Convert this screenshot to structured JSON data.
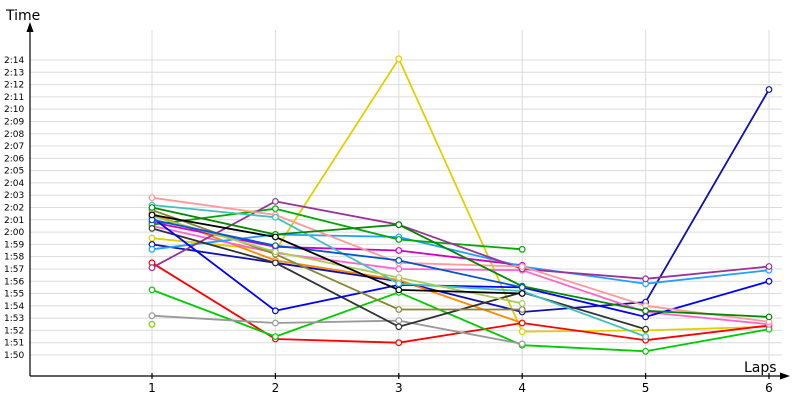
{
  "chart_data": {
    "type": "line",
    "xlabel": "Laps",
    "ylabel": "Time",
    "x": [
      1,
      2,
      3,
      4,
      5,
      6
    ],
    "xlim": [
      0,
      6.05
    ],
    "ylim_seconds": [
      109,
      136
    ],
    "y_ticks": [
      "1:50",
      "1:51",
      "1:52",
      "1:53",
      "1:54",
      "1:55",
      "1:56",
      "1:57",
      "1:58",
      "1:59",
      "2:00",
      "2:01",
      "2:02",
      "2:03",
      "2:04",
      "2:05",
      "2:06",
      "2:07",
      "2:08",
      "2:09",
      "2:10",
      "2:11",
      "2:12",
      "2:13",
      "2:14"
    ],
    "y_ticks_seconds": [
      110,
      111,
      112,
      113,
      114,
      115,
      116,
      117,
      118,
      119,
      120,
      121,
      122,
      123,
      124,
      125,
      126,
      127,
      128,
      129,
      130,
      131,
      132,
      133,
      134
    ],
    "grid": true,
    "series": [
      {
        "color": "#e0d000",
        "values": [
          119.5,
          118.5,
          134.1,
          111.9,
          112.0,
          112.3
        ]
      },
      {
        "color": "#1010b0",
        "values": [
          119.0,
          117.5,
          116.0,
          113.5,
          114.3,
          131.6
        ]
      },
      {
        "color": "#ff8800",
        "values": [
          121.5,
          117.7,
          116.1,
          112.6,
          null,
          null
        ]
      },
      {
        "color": "#ff0000",
        "values": [
          117.5,
          111.3,
          111.0,
          112.6,
          111.2,
          112.4
        ]
      },
      {
        "color": "#00cc00",
        "values": [
          115.3,
          111.5,
          115.1,
          110.8,
          110.3,
          112.1
        ]
      },
      {
        "color": "#999999",
        "values": [
          113.2,
          112.6,
          112.8,
          110.9,
          null,
          null
        ]
      },
      {
        "color": "#80d000",
        "values": [
          112.5,
          null,
          null,
          null,
          null,
          null
        ]
      },
      {
        "color": "#cc00cc",
        "values": [
          120.8,
          118.8,
          118.5,
          117.3,
          null,
          null
        ]
      },
      {
        "color": "#ff66cc",
        "values": [
          120.5,
          118.3,
          117.0,
          116.9,
          113.5,
          112.5
        ]
      },
      {
        "color": "#20a0ff",
        "values": [
          118.6,
          119.8,
          119.6,
          117.2,
          115.8,
          116.9
        ]
      },
      {
        "color": "#00aa00",
        "values": [
          120.6,
          121.9,
          119.4,
          118.6,
          null,
          null
        ]
      },
      {
        "color": "#993399",
        "values": [
          117.1,
          122.5,
          120.6,
          117.0,
          116.2,
          117.2
        ]
      },
      {
        "color": "#333333",
        "values": [
          120.3,
          117.5,
          112.3,
          115.1,
          112.1,
          null
        ]
      },
      {
        "color": "#0000ff",
        "values": [
          121.2,
          113.6,
          115.7,
          115.5,
          113.1,
          116.0
        ]
      },
      {
        "color": "#888833",
        "values": [
          121.8,
          118.2,
          113.7,
          113.7,
          null,
          null
        ]
      },
      {
        "color": "#ff9999",
        "values": [
          122.8,
          121.4,
          117.5,
          117.2,
          114.0,
          112.7
        ]
      },
      {
        "color": "#40c0c0",
        "values": [
          122.2,
          121.2,
          115.8,
          115.2,
          111.5,
          null
        ]
      },
      {
        "color": "#aacc55",
        "values": [
          121.3,
          118.4,
          116.3,
          114.2,
          null,
          null
        ]
      },
      {
        "color": "#008800",
        "values": [
          122.0,
          119.8,
          120.6,
          115.6,
          113.6,
          113.1
        ]
      },
      {
        "color": "#0055cc",
        "values": [
          121.0,
          118.9,
          117.7,
          115.5,
          null,
          null
        ]
      },
      {
        "color": "#000000",
        "values": [
          121.4,
          119.6,
          115.3,
          115.0,
          null,
          null
        ]
      }
    ]
  }
}
